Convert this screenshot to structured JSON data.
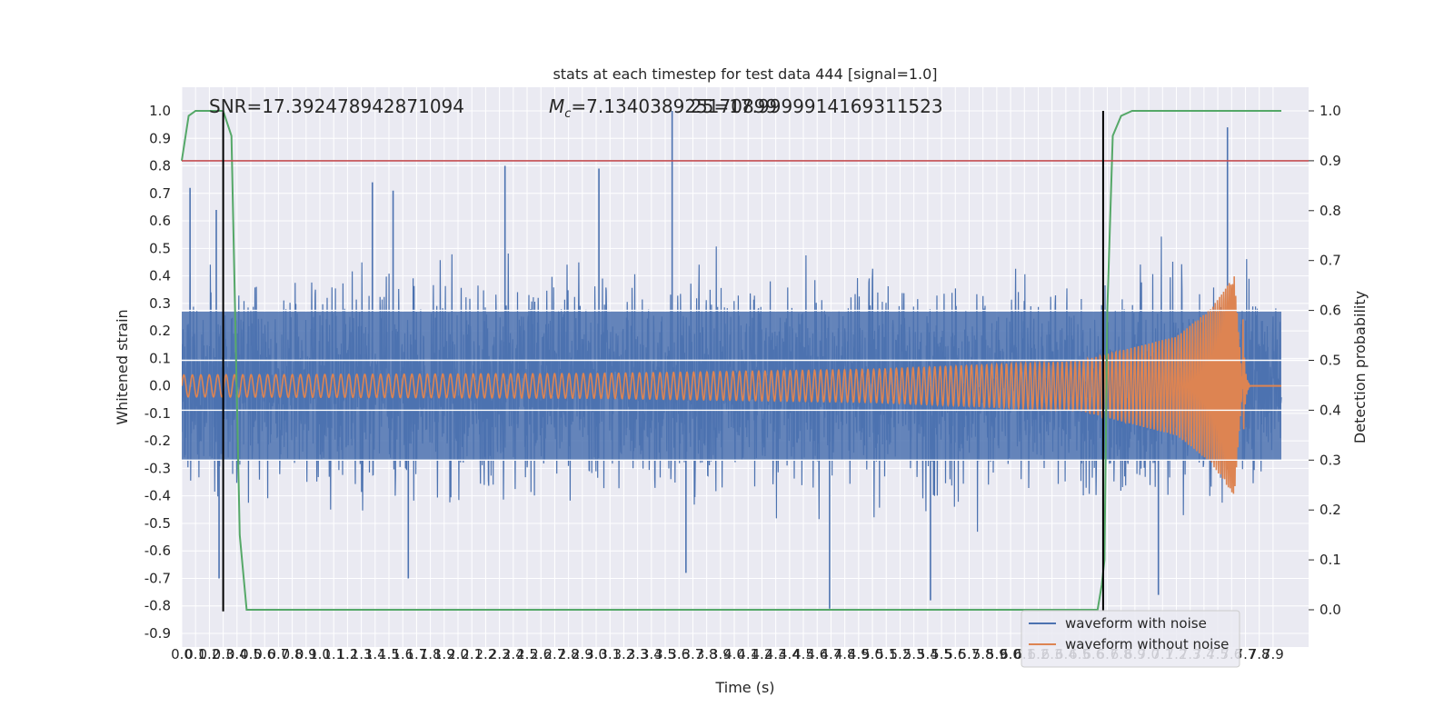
{
  "chart_data": {
    "type": "line",
    "title": "stats at each timestep for test data 444 [signal=1.0]",
    "xlabel": "Time (s)",
    "ylabel": "Whitened strain",
    "ylabel_right": "Detection probability",
    "xlim": [
      0,
      7.96
    ],
    "ylim": [
      -0.9,
      1.0
    ],
    "ylim_right": [
      0.0,
      1.0
    ],
    "grid": true,
    "legend_position": "bottom-right",
    "annotations": {
      "snr": "SNR=17.392478942871094",
      "mc_prefix": "M",
      "mc_sub": "c",
      "mc_value": "=7.134038925170899",
      "overlap": "25=17.9999914169311523"
    },
    "x_ticks": [
      "0.0",
      "0.1",
      "0.2",
      "0.3",
      "0.4",
      "0.5",
      "0.6",
      "0.7",
      "0.8",
      "0.9",
      "1.0",
      "1.1",
      "1.2",
      "1.3",
      "1.4",
      "1.5",
      "1.6",
      "1.7",
      "1.8",
      "1.9",
      "2.0",
      "2.1",
      "2.2",
      "2.3",
      "2.4",
      "2.5",
      "2.6",
      "2.7",
      "2.8",
      "2.9",
      "3.0",
      "3.1",
      "3.2",
      "3.3",
      "3.4",
      "3.5",
      "3.6",
      "3.7",
      "3.8",
      "3.9",
      "4.0",
      "4.1",
      "4.2",
      "4.3",
      "4.4",
      "4.5",
      "4.6",
      "4.7",
      "4.8",
      "4.9",
      "5.0",
      "5.1",
      "5.2",
      "5.3",
      "5.4",
      "5.5",
      "5.6",
      "5.7",
      "5.8",
      "5.9",
      "6.0",
      "6.1",
      "6.2",
      "6.3",
      "6.4",
      "6.5",
      "6.6",
      "6.7",
      "6.8",
      "6.9",
      "7.0",
      "7.1",
      "7.2",
      "7.3",
      "7.4",
      "7.5",
      "7.6",
      "7.7",
      "7.8",
      "7.9"
    ],
    "y_ticks": [
      -0.9,
      -0.8,
      -0.7,
      -0.6,
      -0.5,
      -0.4,
      -0.3,
      -0.2,
      -0.1,
      0.0,
      0.1,
      0.2,
      0.3,
      0.4,
      0.5,
      0.6,
      0.7,
      0.8,
      0.9,
      1.0
    ],
    "y_ticks_right": [
      0.0,
      0.1,
      0.2,
      0.3,
      0.4,
      0.5,
      0.6,
      0.7,
      0.8,
      0.9,
      1.0
    ],
    "y_right_gridlines": [
      0.3,
      0.4,
      0.5,
      0.6
    ],
    "threshold": 0.9,
    "vlines": [
      {
        "x": 0.3,
        "y0": -0.82,
        "y1": 1.0
      },
      {
        "x": 6.67,
        "y0": -0.82,
        "y1": 1.0
      }
    ],
    "series": [
      {
        "name": "waveform with noise",
        "color": "#4c72b0",
        "noise_seed": 444,
        "spikes": [
          {
            "x": 0.06,
            "y": 0.72
          },
          {
            "x": 0.25,
            "y": 0.64
          },
          {
            "x": 1.38,
            "y": 0.74
          },
          {
            "x": 1.53,
            "y": 0.71
          },
          {
            "x": 2.34,
            "y": 0.8
          },
          {
            "x": 3.02,
            "y": 0.79
          },
          {
            "x": 3.55,
            "y": 1.0
          },
          {
            "x": 4.69,
            "y": -0.81
          },
          {
            "x": 5.42,
            "y": -0.78
          },
          {
            "x": 7.07,
            "y": -0.76
          },
          {
            "x": 7.57,
            "y": 0.94
          },
          {
            "x": 0.27,
            "y": -0.7
          },
          {
            "x": 1.64,
            "y": -0.7
          },
          {
            "x": 3.65,
            "y": -0.68
          }
        ]
      },
      {
        "name": "waveform without noise",
        "color": "#dd8452",
        "envelope": [
          [
            0.0,
            0.04
          ],
          [
            3.0,
            0.045
          ],
          [
            5.0,
            0.06
          ],
          [
            6.5,
            0.09
          ],
          [
            7.2,
            0.18
          ],
          [
            7.45,
            0.28
          ],
          [
            7.62,
            0.4
          ],
          [
            7.68,
            0.0
          ]
        ],
        "cycles": 195,
        "merger_x": 7.68
      },
      {
        "name": "detection probability",
        "color": "#55a868",
        "axis": "right",
        "x": [
          0.0,
          0.05,
          0.1,
          0.2,
          0.29,
          0.3,
          0.36,
          0.42,
          0.47,
          0.55,
          1.0,
          3.0,
          6.4,
          6.6,
          6.63,
          6.66,
          6.68,
          6.7,
          6.74,
          6.8,
          6.88,
          7.0,
          7.2,
          7.5,
          7.96
        ],
        "y": [
          0.9,
          0.99,
          1.0,
          1.0,
          1.0,
          1.0,
          0.95,
          0.15,
          0.0,
          0.0,
          0.0,
          0.0,
          0.0,
          0.0,
          0.0,
          0.05,
          0.1,
          0.6,
          0.95,
          0.99,
          1.0,
          1.0,
          1.0,
          1.0,
          1.0
        ]
      },
      {
        "name": "threshold",
        "color": "#c44e52",
        "axis": "right"
      }
    ],
    "legend": [
      "waveform with noise",
      "waveform without noise"
    ]
  }
}
